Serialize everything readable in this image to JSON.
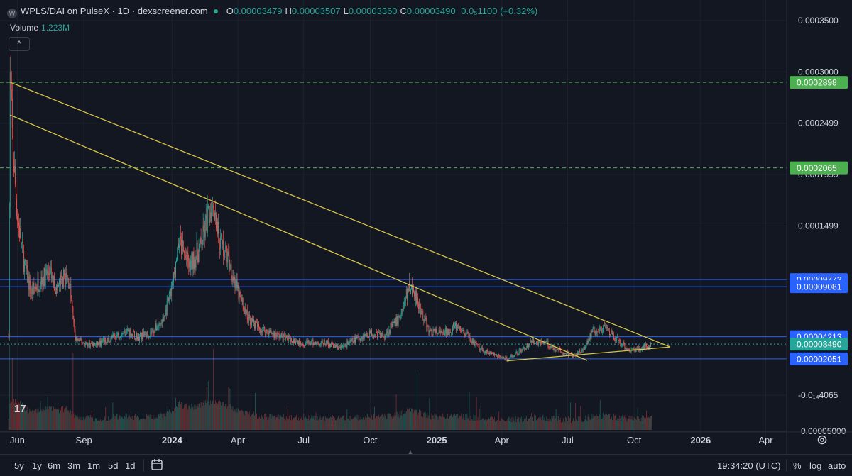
{
  "header": {
    "title": "WPLS/DAI on PulseX · 1D · dexscreener.com",
    "ohlc": [
      {
        "k": "O",
        "v": "0.00003479"
      },
      {
        "k": "H",
        "v": "0.00003507"
      },
      {
        "k": "L",
        "v": "0.00003360"
      },
      {
        "k": "C",
        "v": "0.00003490"
      }
    ],
    "change": "0.0₅1100 (+0.32%)",
    "volume_label": "Volume",
    "volume_value": "1.223M",
    "collapse_glyph": "^",
    "logo_glyph": "W",
    "tv_logo": "17"
  },
  "colors": {
    "background": "#131722",
    "grid": "#1e222d",
    "up": "#26a69a",
    "down": "#ef5350",
    "trendline": "#d6c44a",
    "support_line": "#2962ff",
    "high_marker": "#4caf50",
    "axis_text": "#d1d4dc"
  },
  "chart_data": {
    "type": "candlestick",
    "symbol": "WPLS/DAI",
    "interval": "1D",
    "y_axis": {
      "scale": "linear",
      "range": [
        -5e-05,
        0.00037
      ],
      "tick_labels": [
        {
          "value": 0.00035,
          "label": "0.0003500"
        },
        {
          "value": 0.0003,
          "label": "0.0003000"
        },
        {
          "value": 0.00025,
          "label": "0.0002499"
        },
        {
          "value": 0.0002,
          "label": "0.0001999"
        },
        {
          "value": 0.00015,
          "label": "0.0001499"
        },
        {
          "value": -1.49e-05,
          "label": "-0.0₁₄4065"
        },
        {
          "value": -5e-05,
          "label": "-0.00005000"
        }
      ]
    },
    "x_axis": {
      "range": [
        "2023-05-08",
        "2026-04-30"
      ],
      "tick_labels": [
        {
          "date": "2023-06-01",
          "label": "Jun",
          "bold": false
        },
        {
          "date": "2023-09-01",
          "label": "Sep",
          "bold": false
        },
        {
          "date": "2024-01-01",
          "label": "2024",
          "bold": true
        },
        {
          "date": "2024-04-01",
          "label": "Apr",
          "bold": false
        },
        {
          "date": "2024-07-01",
          "label": "Jul",
          "bold": false
        },
        {
          "date": "2024-10-01",
          "label": "Oct",
          "bold": false
        },
        {
          "date": "2025-01-01",
          "label": "2025",
          "bold": true
        },
        {
          "date": "2025-04-01",
          "label": "Apr",
          "bold": false
        },
        {
          "date": "2025-07-01",
          "label": "Jul",
          "bold": false
        },
        {
          "date": "2025-10-01",
          "label": "Oct",
          "bold": false
        },
        {
          "date": "2026-01-01",
          "label": "2026",
          "bold": true
        },
        {
          "date": "2026-04-01",
          "label": "Apr",
          "bold": false
        }
      ]
    },
    "price_path": [
      [
        "2023-05-20",
        4.5e-05
      ],
      [
        "2023-05-22",
        0.00029
      ],
      [
        "2023-05-26",
        0.00022
      ],
      [
        "2023-06-01",
        0.00016
      ],
      [
        "2023-06-10",
        0.000115
      ],
      [
        "2023-06-20",
        8.5e-05
      ],
      [
        "2023-07-01",
        9.5e-05
      ],
      [
        "2023-07-15",
        0.000105
      ],
      [
        "2023-07-25",
        8.8e-05
      ],
      [
        "2023-08-05",
        0.0001
      ],
      [
        "2023-08-12",
        9.5e-05
      ],
      [
        "2023-08-20",
        4e-05
      ],
      [
        "2023-09-01",
        3.6e-05
      ],
      [
        "2023-09-15",
        3.4e-05
      ],
      [
        "2023-10-01",
        3.8e-05
      ],
      [
        "2023-10-15",
        4.3e-05
      ],
      [
        "2023-11-01",
        4.8e-05
      ],
      [
        "2023-11-15",
        4.2e-05
      ],
      [
        "2023-12-01",
        4.5e-05
      ],
      [
        "2023-12-20",
        5.8e-05
      ],
      [
        "2024-01-01",
        9e-05
      ],
      [
        "2024-01-10",
        0.000135
      ],
      [
        "2024-01-25",
        0.00011
      ],
      [
        "2024-02-10",
        0.00013
      ],
      [
        "2024-02-20",
        0.00016
      ],
      [
        "2024-02-27",
        0.000175
      ],
      [
        "2024-03-05",
        0.00014
      ],
      [
        "2024-03-20",
        0.000115
      ],
      [
        "2024-04-01",
        8.5e-05
      ],
      [
        "2024-04-15",
        6e-05
      ],
      [
        "2024-05-01",
        5e-05
      ],
      [
        "2024-06-01",
        4.2e-05
      ],
      [
        "2024-07-01",
        3.6e-05
      ],
      [
        "2024-08-01",
        3.6e-05
      ],
      [
        "2024-08-20",
        3.1e-05
      ],
      [
        "2024-09-01",
        3.6e-05
      ],
      [
        "2024-10-01",
        4.6e-05
      ],
      [
        "2024-10-20",
        4.3e-05
      ],
      [
        "2024-11-10",
        6e-05
      ],
      [
        "2024-11-25",
        9.2e-05
      ],
      [
        "2024-12-05",
        8e-05
      ],
      [
        "2024-12-20",
        4.8e-05
      ],
      [
        "2025-01-10",
        4.5e-05
      ],
      [
        "2025-01-25",
        5.2e-05
      ],
      [
        "2025-02-10",
        4.5e-05
      ],
      [
        "2025-03-01",
        3e-05
      ],
      [
        "2025-03-20",
        2.5e-05
      ],
      [
        "2025-04-08",
        2e-05
      ],
      [
        "2025-04-25",
        2.8e-05
      ],
      [
        "2025-05-15",
        3.8e-05
      ],
      [
        "2025-06-01",
        3.6e-05
      ],
      [
        "2025-06-20",
        2.8e-05
      ],
      [
        "2025-07-10",
        2.3e-05
      ],
      [
        "2025-07-25",
        3.3e-05
      ],
      [
        "2025-08-05",
        4.8e-05
      ],
      [
        "2025-08-20",
        5e-05
      ],
      [
        "2025-09-05",
        4e-05
      ],
      [
        "2025-09-25",
        2.9e-05
      ],
      [
        "2025-10-10",
        3.1e-05
      ],
      [
        "2025-10-25",
        3.5e-05
      ]
    ],
    "volume_peaks": [
      [
        "2023-05-21",
        1.0
      ],
      [
        "2023-05-25",
        0.85
      ],
      [
        "2023-08-17",
        0.9
      ],
      [
        "2024-02-27",
        0.95
      ],
      [
        "2024-12-05",
        0.7
      ],
      [
        "2025-02-15",
        0.45
      ]
    ],
    "volume_scale": "relative to tallest volume bar (1.0)",
    "horizontal_levels": [
      {
        "value": 0.0002898,
        "label": "0.0002898",
        "style": "dashed",
        "color": "#4caf50"
      },
      {
        "value": 0.0002065,
        "label": "0.0002065",
        "style": "dashed",
        "color": "#4caf50"
      },
      {
        "value": 9.772e-05,
        "label": "0.00009772",
        "style": "solid",
        "color": "#2962ff"
      },
      {
        "value": 9.081e-05,
        "label": "0.00009081",
        "style": "solid",
        "color": "#2962ff"
      },
      {
        "value": 4.213e-05,
        "label": "0.00004213",
        "style": "solid",
        "color": "#2962ff"
      },
      {
        "value": 3.49e-05,
        "label": "0.00003490",
        "style": "dotted",
        "color": "#26a69a"
      },
      {
        "value": 2.051e-05,
        "label": "0.00002051",
        "style": "solid",
        "color": "#2962ff"
      }
    ],
    "trendlines": [
      {
        "from": [
          "2023-05-22",
          0.00029
        ],
        "to": [
          "2025-11-20",
          3.21e-05
        ]
      },
      {
        "from": [
          "2023-05-22",
          0.000258
        ],
        "to": [
          "2025-07-28",
          1.9e-05
        ]
      },
      {
        "from": [
          "2025-04-08",
          1.86e-05
        ],
        "to": [
          "2025-11-20",
          3.21e-05
        ]
      }
    ]
  },
  "bottom_bar": {
    "ranges": [
      "5y",
      "1y",
      "6m",
      "3m",
      "1m",
      "5d",
      "1d"
    ],
    "time": "19:34:20 (UTC)",
    "options": [
      "%",
      "log",
      "auto"
    ]
  }
}
